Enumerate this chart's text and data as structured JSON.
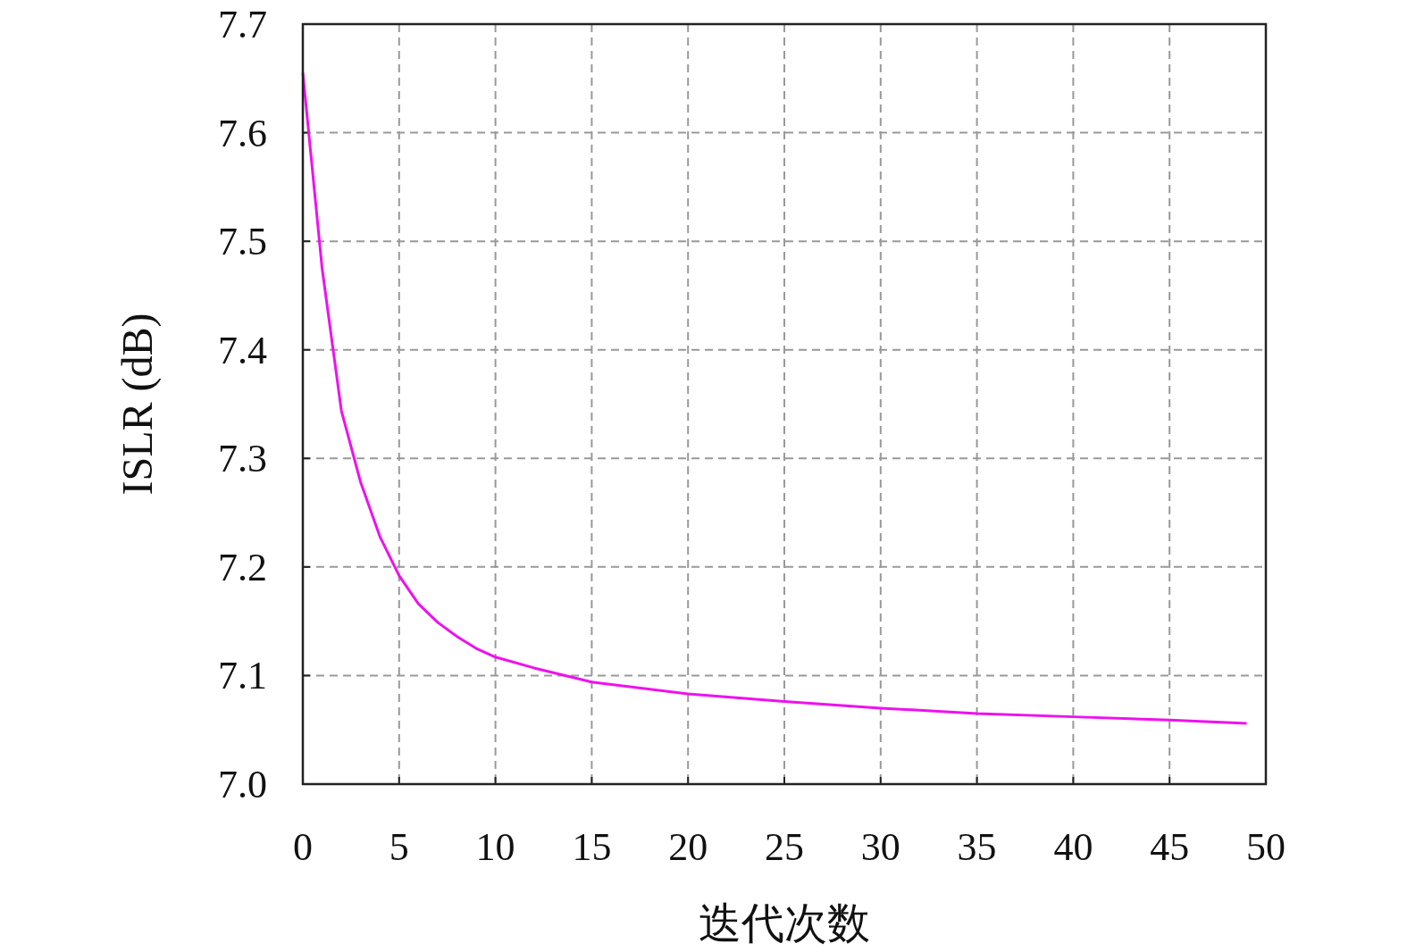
{
  "chart_data": {
    "type": "line",
    "xlabel": "迭代次数",
    "ylabel": "ISLR (dB)",
    "xlim": [
      0,
      50
    ],
    "ylim": [
      7.0,
      7.7
    ],
    "xticks": [
      0,
      5,
      10,
      15,
      20,
      25,
      30,
      35,
      40,
      45,
      50
    ],
    "yticks": [
      {
        "value": 7.0,
        "label": "7.0"
      },
      7.1,
      7.2,
      7.3,
      7.4,
      7.5,
      7.6,
      7.7
    ],
    "grid": true,
    "series": [
      {
        "color": "#ee11ee",
        "x": [
          0,
          1,
          2,
          3,
          4,
          5,
          6,
          7,
          8,
          9,
          10,
          12,
          15,
          20,
          25,
          30,
          35,
          40,
          45,
          49
        ],
        "values": [
          7.655,
          7.475,
          7.344,
          7.278,
          7.228,
          7.192,
          7.166,
          7.149,
          7.136,
          7.125,
          7.117,
          7.107,
          7.094,
          7.083,
          7.076,
          7.07,
          7.065,
          7.062,
          7.059,
          7.056
        ]
      }
    ]
  }
}
